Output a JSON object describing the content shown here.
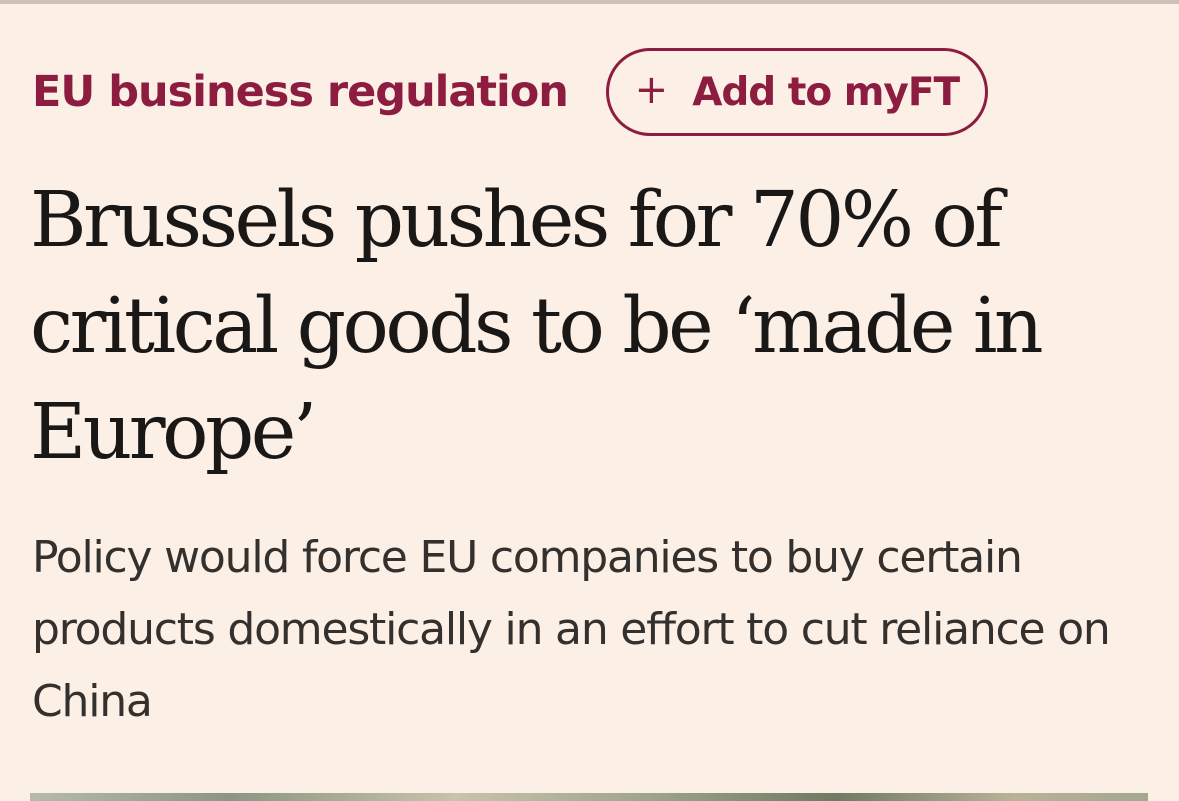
{
  "topic": {
    "label": "EU business regulation"
  },
  "follow_button": {
    "icon": "plus-icon",
    "icon_glyph": "+",
    "label": "Add to myFT"
  },
  "article": {
    "headline": "Brussels pushes for 70% of critical goods to be ‘made in Europe’",
    "standfirst": "Policy would force EU companies to buy certain products domestically in an effort to cut reliance on China"
  },
  "colors": {
    "background": "#fcefe6",
    "accent": "#8c1d40",
    "headline_text": "#1a1817",
    "body_text": "#33302e"
  }
}
